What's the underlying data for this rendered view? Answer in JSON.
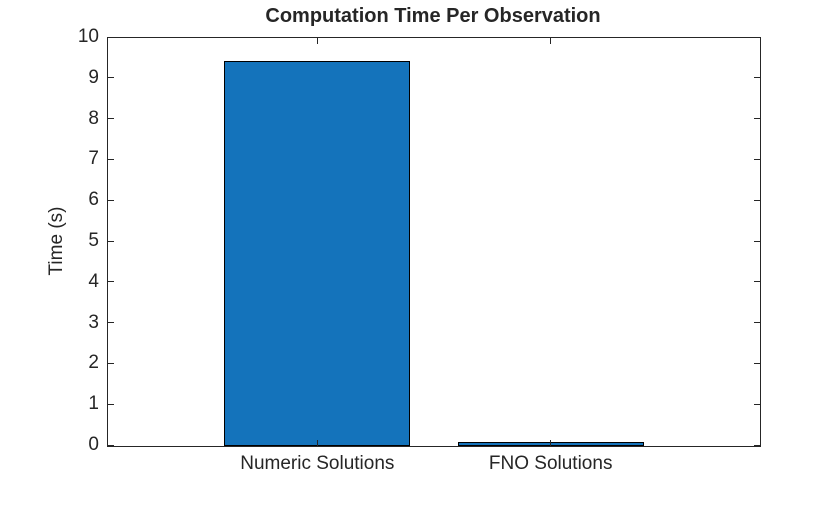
{
  "chart_data": {
    "type": "bar",
    "title": "Computation Time Per Observation",
    "categories": [
      "Numeric Solutions",
      "FNO Solutions"
    ],
    "values": [
      9.4,
      0.07
    ],
    "xlabel": "",
    "ylabel": "Time (s)",
    "ylim": [
      0,
      10
    ],
    "yticks": [
      0,
      1,
      2,
      3,
      4,
      5,
      6,
      7,
      8,
      9,
      10
    ],
    "grid": false,
    "legend": "none",
    "bar_color": "#1473BB",
    "bar_edge_color": "#000000",
    "axis_color": "#262626",
    "text_color": "#262626",
    "background_color": "#ffffff"
  }
}
